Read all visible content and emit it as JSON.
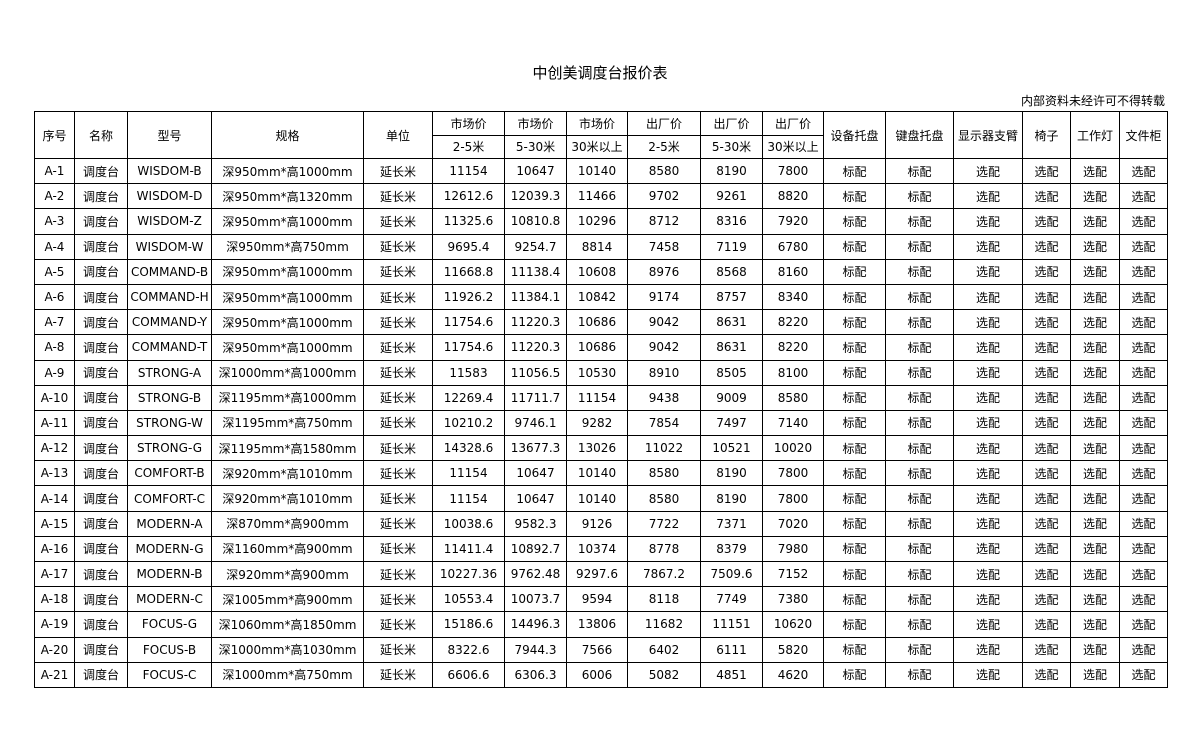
{
  "title": "中创美调度台报价表",
  "note": "内部资料未经许可不得转载",
  "table": {
    "columns": [
      {
        "label": "序号"
      },
      {
        "label": "名称"
      },
      {
        "label": "型号"
      },
      {
        "label": "规格"
      },
      {
        "label": "单位"
      },
      {
        "group": "市场价",
        "sub": "2-5米"
      },
      {
        "group": "市场价",
        "sub": "5-30米"
      },
      {
        "group": "市场价",
        "sub": "30米以上"
      },
      {
        "group": "出厂价",
        "sub": "2-5米"
      },
      {
        "group": "出厂价",
        "sub": "5-30米"
      },
      {
        "group": "出厂价",
        "sub": "30米以上"
      },
      {
        "label": "设备托盘"
      },
      {
        "label": "键盘托盘"
      },
      {
        "label": "显示器支臂"
      },
      {
        "label": "椅子"
      },
      {
        "label": "工作灯"
      },
      {
        "label": "文件柜"
      }
    ],
    "rows": [
      [
        "A-1",
        "调度台",
        "WISDOM-B",
        "深950mm*高1000mm",
        "延长米",
        11154,
        10647,
        10140,
        8580,
        8190,
        7800,
        "标配",
        "标配",
        "选配",
        "选配",
        "选配",
        "选配"
      ],
      [
        "A-2",
        "调度台",
        "WISDOM-D",
        "深950mm*高1320mm",
        "延长米",
        12612.6,
        12039.3,
        11466,
        9702,
        9261,
        8820,
        "标配",
        "标配",
        "选配",
        "选配",
        "选配",
        "选配"
      ],
      [
        "A-3",
        "调度台",
        "WISDOM-Z",
        "深950mm*高1000mm",
        "延长米",
        11325.6,
        10810.8,
        10296,
        8712,
        8316,
        7920,
        "标配",
        "标配",
        "选配",
        "选配",
        "选配",
        "选配"
      ],
      [
        "A-4",
        "调度台",
        "WISDOM-W",
        "深950mm*高750mm",
        "延长米",
        9695.4,
        9254.7,
        8814,
        7458,
        7119,
        6780,
        "标配",
        "标配",
        "选配",
        "选配",
        "选配",
        "选配"
      ],
      [
        "A-5",
        "调度台",
        "COMMAND-B",
        "深950mm*高1000mm",
        "延长米",
        11668.8,
        11138.4,
        10608,
        8976,
        8568,
        8160,
        "标配",
        "标配",
        "选配",
        "选配",
        "选配",
        "选配"
      ],
      [
        "A-6",
        "调度台",
        "COMMAND-H",
        "深950mm*高1000mm",
        "延长米",
        11926.2,
        11384.1,
        10842,
        9174,
        8757,
        8340,
        "标配",
        "标配",
        "选配",
        "选配",
        "选配",
        "选配"
      ],
      [
        "A-7",
        "调度台",
        "COMMAND-Y",
        "深950mm*高1000mm",
        "延长米",
        11754.6,
        11220.3,
        10686,
        9042,
        8631,
        8220,
        "标配",
        "标配",
        "选配",
        "选配",
        "选配",
        "选配"
      ],
      [
        "A-8",
        "调度台",
        "COMMAND-T",
        "深950mm*高1000mm",
        "延长米",
        11754.6,
        11220.3,
        10686,
        9042,
        8631,
        8220,
        "标配",
        "标配",
        "选配",
        "选配",
        "选配",
        "选配"
      ],
      [
        "A-9",
        "调度台",
        "STRONG-A",
        "深1000mm*高1000mm",
        "延长米",
        11583,
        11056.5,
        10530,
        8910,
        8505,
        8100,
        "标配",
        "标配",
        "选配",
        "选配",
        "选配",
        "选配"
      ],
      [
        "A-10",
        "调度台",
        "STRONG-B",
        "深1195mm*高1000mm",
        "延长米",
        12269.4,
        11711.7,
        11154,
        9438,
        9009,
        8580,
        "标配",
        "标配",
        "选配",
        "选配",
        "选配",
        "选配"
      ],
      [
        "A-11",
        "调度台",
        "STRONG-W",
        "深1195mm*高750mm",
        "延长米",
        10210.2,
        9746.1,
        9282,
        7854,
        7497,
        7140,
        "标配",
        "标配",
        "选配",
        "选配",
        "选配",
        "选配"
      ],
      [
        "A-12",
        "调度台",
        "STRONG-G",
        "深1195mm*高1580mm",
        "延长米",
        14328.6,
        13677.3,
        13026,
        11022,
        10521,
        10020,
        "标配",
        "标配",
        "选配",
        "选配",
        "选配",
        "选配"
      ],
      [
        "A-13",
        "调度台",
        "COMFORT-B",
        "深920mm*高1010mm",
        "延长米",
        11154,
        10647,
        10140,
        8580,
        8190,
        7800,
        "标配",
        "标配",
        "选配",
        "选配",
        "选配",
        "选配"
      ],
      [
        "A-14",
        "调度台",
        "COMFORT-C",
        "深920mm*高1010mm",
        "延长米",
        11154,
        10647,
        10140,
        8580,
        8190,
        7800,
        "标配",
        "标配",
        "选配",
        "选配",
        "选配",
        "选配"
      ],
      [
        "A-15",
        "调度台",
        "MODERN-A",
        "深870mm*高900mm",
        "延长米",
        10038.6,
        9582.3,
        9126,
        7722,
        7371,
        7020,
        "标配",
        "标配",
        "选配",
        "选配",
        "选配",
        "选配"
      ],
      [
        "A-16",
        "调度台",
        "MODERN-G",
        "深1160mm*高900mm",
        "延长米",
        11411.4,
        10892.7,
        10374,
        8778,
        8379,
        7980,
        "标配",
        "标配",
        "选配",
        "选配",
        "选配",
        "选配"
      ],
      [
        "A-17",
        "调度台",
        "MODERN-B",
        "深920mm*高900mm",
        "延长米",
        10227.36,
        9762.48,
        9297.6,
        7867.2,
        7509.6,
        7152,
        "标配",
        "标配",
        "选配",
        "选配",
        "选配",
        "选配"
      ],
      [
        "A-18",
        "调度台",
        "MODERN-C",
        "深1005mm*高900mm",
        "延长米",
        10553.4,
        10073.7,
        9594,
        8118,
        7749,
        7380,
        "标配",
        "标配",
        "选配",
        "选配",
        "选配",
        "选配"
      ],
      [
        "A-19",
        "调度台",
        "FOCUS-G",
        "深1060mm*高1850mm",
        "延长米",
        15186.6,
        14496.3,
        13806,
        11682,
        11151,
        10620,
        "标配",
        "标配",
        "选配",
        "选配",
        "选配",
        "选配"
      ],
      [
        "A-20",
        "调度台",
        "FOCUS-B",
        "深1000mm*高1030mm",
        "延长米",
        8322.6,
        7944.3,
        7566,
        6402,
        6111,
        5820,
        "标配",
        "标配",
        "选配",
        "选配",
        "选配",
        "选配"
      ],
      [
        "A-21",
        "调度台",
        "FOCUS-C",
        "深1000mm*高750mm",
        "延长米",
        6606.6,
        6306.3,
        6006,
        5082,
        4851,
        4620,
        "标配",
        "标配",
        "选配",
        "选配",
        "选配",
        "选配"
      ]
    ]
  }
}
